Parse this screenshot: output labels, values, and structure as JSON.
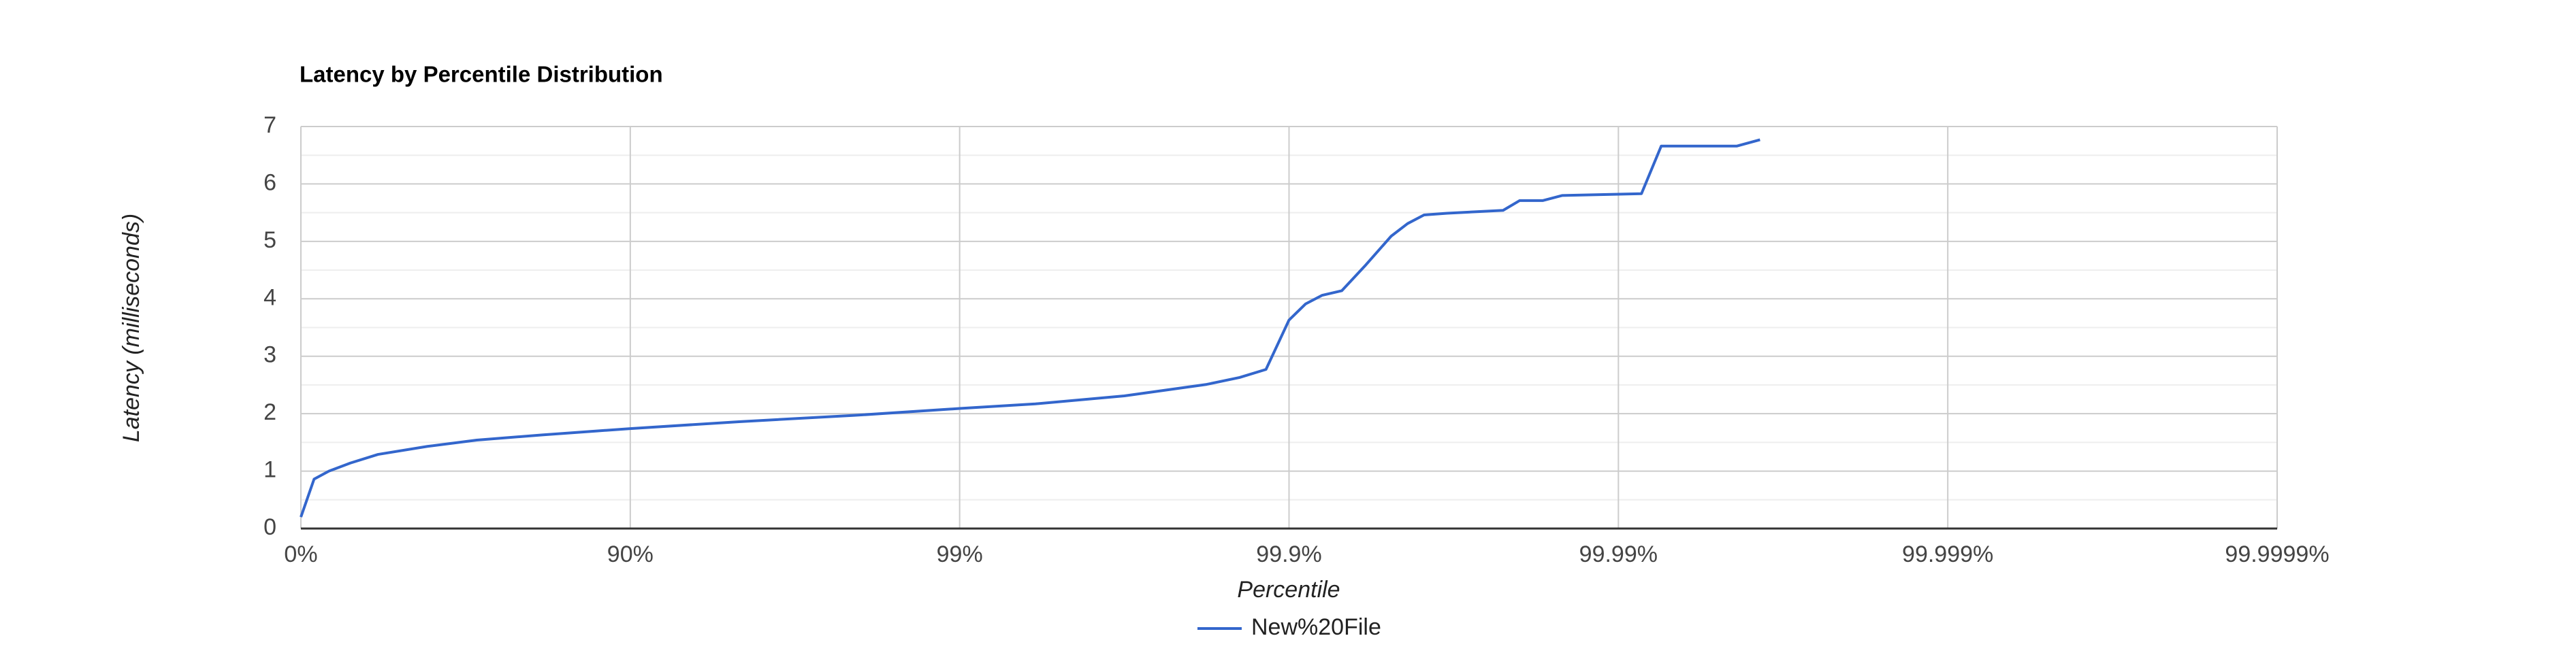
{
  "chart_data": {
    "type": "line",
    "title": "Latency by Percentile Distribution",
    "xlabel": "Percentile",
    "ylabel": "Latency (milliseconds)",
    "x": [
      0,
      0.04,
      0.085,
      0.15,
      0.234,
      0.384,
      0.534,
      0.733,
      1.0,
      1.33,
      1.68,
      2.0,
      2.23,
      2.5,
      2.75,
      2.85,
      2.93,
      3.0,
      3.05,
      3.1,
      3.16,
      3.23,
      3.31,
      3.36,
      3.41,
      3.48,
      3.65,
      3.7,
      3.77,
      3.83,
      4.07,
      4.13,
      4.36,
      4.43
    ],
    "series": [
      {
        "name": "New%20File",
        "color": "#3366cc",
        "values": [
          0.2,
          0.86,
          1.0,
          1.14,
          1.29,
          1.43,
          1.54,
          1.63,
          1.74,
          1.86,
          1.97,
          2.09,
          2.17,
          2.31,
          2.51,
          2.63,
          2.77,
          3.63,
          3.91,
          4.06,
          4.14,
          4.57,
          5.09,
          5.31,
          5.46,
          5.49,
          5.54,
          5.71,
          5.71,
          5.8,
          5.83,
          6.66,
          6.66,
          6.77
        ]
      }
    ],
    "xlim": [
      0,
      6
    ],
    "xticks": [
      {
        "value": 0,
        "label": "0%"
      },
      {
        "value": 1,
        "label": "90%"
      },
      {
        "value": 2,
        "label": "99%"
      },
      {
        "value": 3,
        "label": "99.9%"
      },
      {
        "value": 4,
        "label": "99.99%"
      },
      {
        "value": 5,
        "label": "99.999%"
      },
      {
        "value": 6,
        "label": "99.9999%"
      }
    ],
    "ylim": [
      0,
      7
    ],
    "yticks": [
      0,
      1,
      2,
      3,
      4,
      5,
      6,
      7
    ],
    "grid": true,
    "legend": "bottom"
  }
}
